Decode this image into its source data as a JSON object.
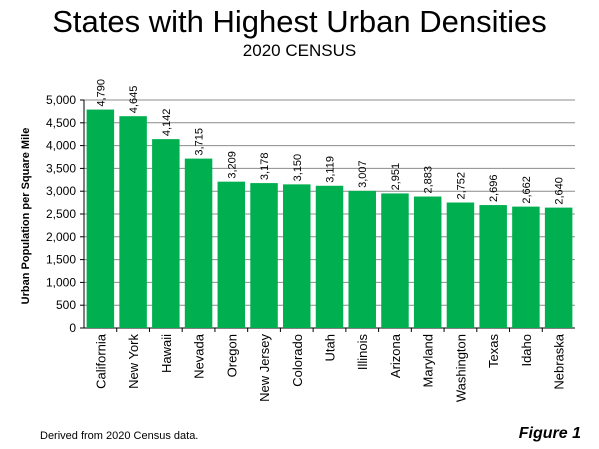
{
  "chart_data": {
    "type": "bar",
    "title": "States with Highest Urban Densities",
    "subtitle": "2020 CENSUS",
    "xlabel": "",
    "ylabel": "Urban Population per Square Mile",
    "ylim": [
      0,
      5000
    ],
    "yticks": [
      0,
      500,
      1000,
      1500,
      2000,
      2500,
      3000,
      3500,
      4000,
      4500,
      5000
    ],
    "ytick_labels": [
      "0",
      "500",
      "1,000",
      "1,500",
      "2,000",
      "2,500",
      "3,000",
      "3,500",
      "4,000",
      "4,500",
      "5,000"
    ],
    "grid": true,
    "bar_color": "#00b050",
    "categories": [
      "California",
      "New York",
      "Hawaii",
      "Nevada",
      "Oregon",
      "New Jersey",
      "Colorado",
      "Utah",
      "Illinois",
      "Arizona",
      "Maryland",
      "Washington",
      "Texas",
      "Idaho",
      "Nebraska"
    ],
    "values": [
      4790,
      4645,
      4142,
      3715,
      3209,
      3178,
      3150,
      3119,
      3007,
      2951,
      2883,
      2752,
      2696,
      2662,
      2640
    ],
    "value_labels": [
      "4,790",
      "4,645",
      "4,142",
      "3,715",
      "3,209",
      "3,178",
      "3,150",
      "3,119",
      "3,007",
      "2,951",
      "2,883",
      "2,752",
      "2,696",
      "2,662",
      "2,640"
    ]
  },
  "footer": {
    "source_note": "Derived from 2020 Census data.",
    "figure_label": "Figure 1"
  }
}
